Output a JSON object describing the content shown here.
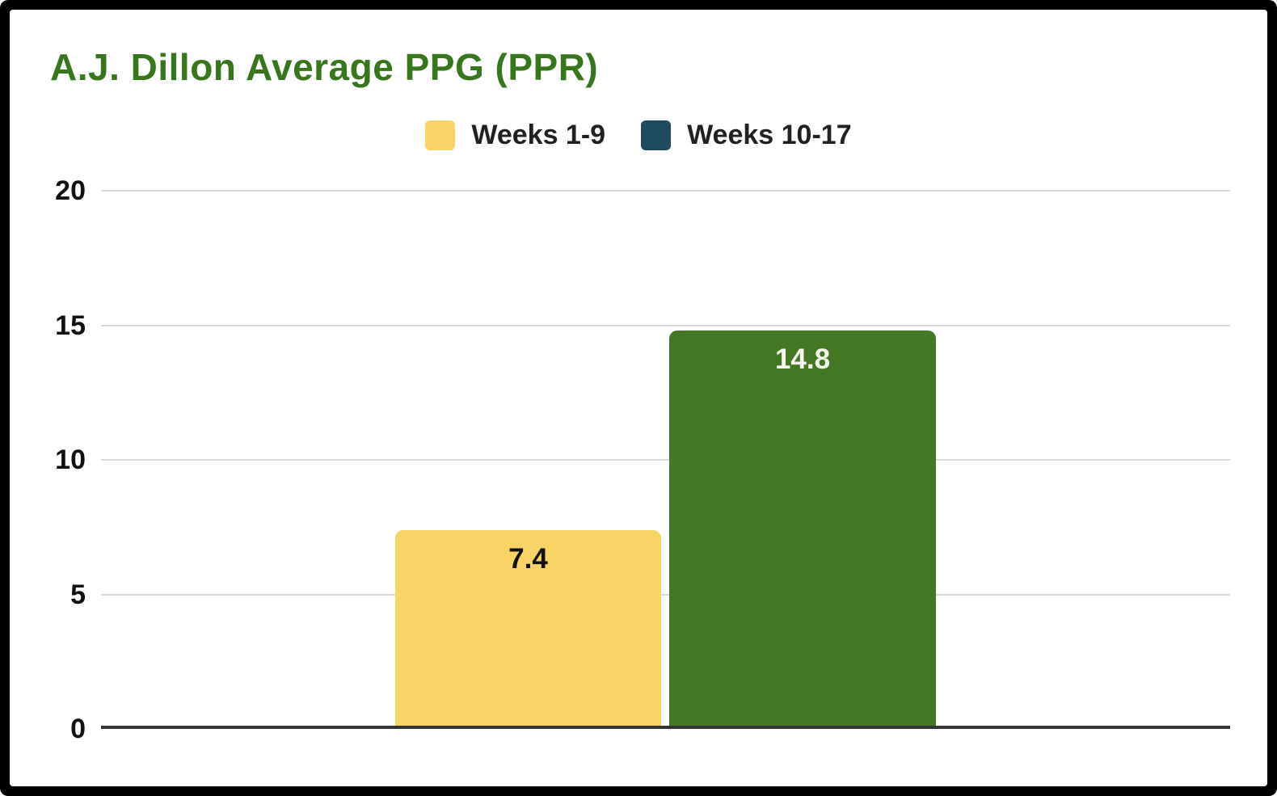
{
  "chart": {
    "title": "A.J. Dillon Average PPG (PPR)",
    "colors": {
      "title": "#38761D",
      "grid": "#D9D9D9",
      "axis": "#333333",
      "tick_label": "#111111",
      "legend_text": "#212121",
      "background": "#FFFFFF",
      "frame": "#000000"
    },
    "legend": [
      {
        "label": "Weeks 1-9",
        "swatch": "#F8D466"
      },
      {
        "label": "Weeks 10-17",
        "swatch": "#1F4B5E"
      }
    ]
  },
  "chart_data": {
    "type": "bar",
    "title": "A.J. Dillon Average PPG (PPR)",
    "categories": [
      ""
    ],
    "series": [
      {
        "name": "Weeks 1-9",
        "values": [
          7.4
        ],
        "color": "#F8D466",
        "value_label": "7.4",
        "value_label_color": "#111111"
      },
      {
        "name": "Weeks 10-17",
        "values": [
          14.8
        ],
        "color": "#447723",
        "value_label": "14.8",
        "value_label_color": "#F7F7EF"
      }
    ],
    "xlabel": "",
    "ylabel": "",
    "ylim": [
      0,
      20
    ],
    "yticks": [
      0,
      5,
      10,
      15,
      20
    ],
    "grid": true,
    "legend_position": "top-center"
  }
}
